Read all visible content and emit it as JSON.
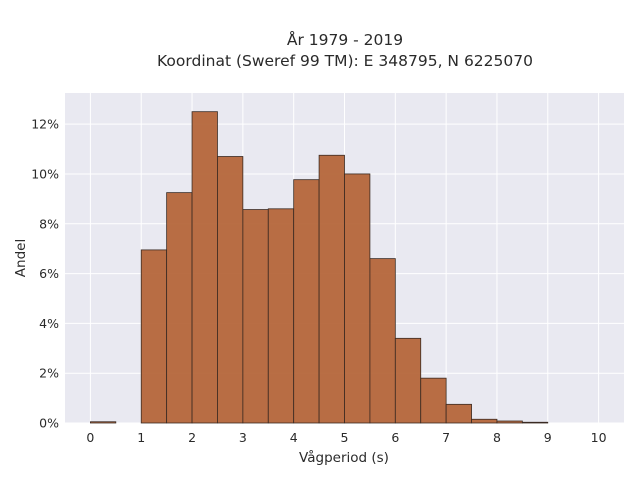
{
  "chart_data": {
    "type": "bar",
    "title_line1": "År 1979 - 2019",
    "title_line2": "Koordinat (Sweref 99 TM): E 348795, N 6225070",
    "xlabel": "Vågperiod (s)",
    "ylabel": "Andel",
    "xlim": [
      -0.5,
      10.5
    ],
    "ylim": [
      0,
      0.1325
    ],
    "x_ticks": [
      0,
      1,
      2,
      3,
      4,
      5,
      6,
      7,
      8,
      9,
      10
    ],
    "x_tick_labels": [
      "0",
      "1",
      "2",
      "3",
      "4",
      "5",
      "6",
      "7",
      "8",
      "9",
      "10"
    ],
    "y_ticks": [
      0,
      0.02,
      0.04,
      0.06,
      0.08,
      0.1,
      0.12
    ],
    "y_tick_labels": [
      "0%",
      "2%",
      "4%",
      "6%",
      "8%",
      "10%",
      "12%"
    ],
    "bin_width": 0.5,
    "bin_starts": [
      0,
      0.5,
      1,
      1.5,
      2,
      2.5,
      3,
      3.5,
      4,
      4.5,
      5,
      5.5,
      6,
      6.5,
      7,
      7.5,
      8,
      8.5,
      9,
      9.5
    ],
    "values": [
      0.0005,
      0,
      0.0695,
      0.0925,
      0.125,
      0.107,
      0.0857,
      0.086,
      0.0977,
      0.1075,
      0.1,
      0.066,
      0.034,
      0.018,
      0.0075,
      0.0015,
      0.0008,
      0.0003,
      0,
      0
    ],
    "grid": true,
    "colors": {
      "bar_fill": "#b46337",
      "bar_edge": "#3a2a22",
      "plot_background": "#e9e9f1",
      "grid": "#ffffff"
    }
  }
}
